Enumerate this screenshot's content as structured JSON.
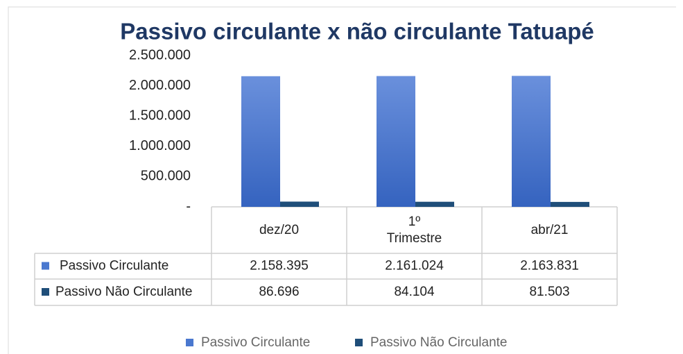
{
  "chart_data": {
    "type": "bar",
    "title": "Passivo circulante x não circulante Tatuapé",
    "categories": [
      "dez/20",
      "1º Trimestre",
      "abr/21"
    ],
    "series": [
      {
        "name": "Passivo Circulante",
        "color": "#4a78cf",
        "values": [
          2158395,
          2161024,
          2163831
        ],
        "value_labels": [
          "2.158.395",
          "2.161.024",
          "2.163.831"
        ]
      },
      {
        "name": "Passivo Não Circulante",
        "color": "#1f4e79",
        "values": [
          86696,
          84104,
          81503
        ],
        "value_labels": [
          "86.696",
          "84.104",
          "81.503"
        ]
      }
    ],
    "ylim": [
      0,
      2500000
    ],
    "yticks": [
      {
        "value": 0,
        "label": "-"
      },
      {
        "value": 500000,
        "label": "500.000"
      },
      {
        "value": 1000000,
        "label": "1.000.000"
      },
      {
        "value": 1500000,
        "label": "1.500.000"
      },
      {
        "value": 2000000,
        "label": "2.000.000"
      },
      {
        "value": 2500000,
        "label": "2.500.000"
      }
    ],
    "grid": false
  }
}
